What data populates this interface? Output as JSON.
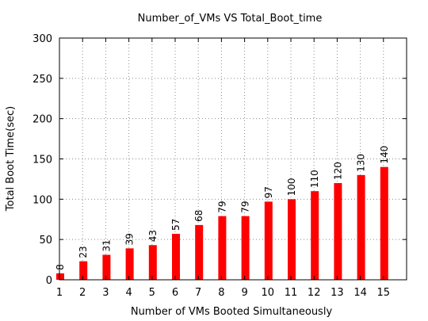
{
  "chart_data": {
    "type": "bar",
    "title": "Number_of_VMs VS Total_Boot_time",
    "xlabel": "Number of VMs Booted Simultaneously",
    "ylabel": "Total Boot Time(sec)",
    "categories": [
      "1",
      "2",
      "3",
      "4",
      "5",
      "6",
      "7",
      "8",
      "9",
      "10",
      "11",
      "12",
      "13",
      "14",
      "15"
    ],
    "values": [
      8,
      23,
      31,
      39,
      43,
      57,
      68,
      79,
      79,
      97,
      100,
      110,
      120,
      130,
      140
    ],
    "xlim": [
      1,
      16
    ],
    "ylim": [
      0,
      300
    ],
    "yticks": [
      0,
      50,
      100,
      150,
      200,
      250,
      300
    ],
    "grid": true,
    "bar_color": "#ff0000",
    "data_labels": true
  }
}
